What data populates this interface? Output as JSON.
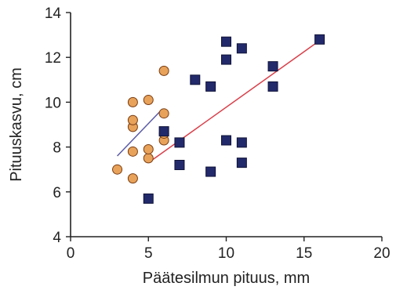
{
  "chart_data": {
    "type": "scatter",
    "title": "",
    "xlabel": "Päätesilmun pituus, mm",
    "ylabel": "Pituuskasvu, cm",
    "xlim": [
      0,
      20
    ],
    "ylim": [
      4,
      14
    ],
    "xticks": [
      0,
      5,
      10,
      15,
      20
    ],
    "yticks": [
      4,
      6,
      8,
      10,
      12,
      14
    ],
    "grid": false,
    "legend": "none",
    "series": [
      {
        "marker": "circle",
        "color": "#e8a25a",
        "edge_color": "#7a3c10",
        "points": [
          [
            3,
            7.0
          ],
          [
            4,
            6.6
          ],
          [
            4,
            7.8
          ],
          [
            4,
            8.9
          ],
          [
            4,
            9.2
          ],
          [
            4,
            10.0
          ],
          [
            5,
            7.5
          ],
          [
            5,
            7.9
          ],
          [
            5,
            10.1
          ],
          [
            6,
            8.3
          ],
          [
            6,
            8.6
          ],
          [
            6,
            9.5
          ],
          [
            6,
            11.4
          ]
        ],
        "trend": {
          "color": "#5a5aa8",
          "from": [
            3,
            7.6
          ],
          "to": [
            5.9,
            9.7
          ]
        }
      },
      {
        "marker": "square",
        "color": "#232a6b",
        "edge_color": "#0e1238",
        "points": [
          [
            5,
            5.7
          ],
          [
            6,
            8.7
          ],
          [
            7,
            7.2
          ],
          [
            7,
            8.2
          ],
          [
            8,
            11.0
          ],
          [
            9,
            6.9
          ],
          [
            9,
            10.7
          ],
          [
            10,
            8.3
          ],
          [
            10,
            11.9
          ],
          [
            10,
            12.7
          ],
          [
            11,
            7.3
          ],
          [
            11,
            8.2
          ],
          [
            11,
            12.4
          ],
          [
            13,
            10.7
          ],
          [
            13,
            11.6
          ],
          [
            16,
            12.8
          ]
        ],
        "trend": {
          "color": "#d9404a",
          "from": [
            5.2,
            7.4
          ],
          "to": [
            15.7,
            12.6
          ]
        }
      }
    ]
  }
}
